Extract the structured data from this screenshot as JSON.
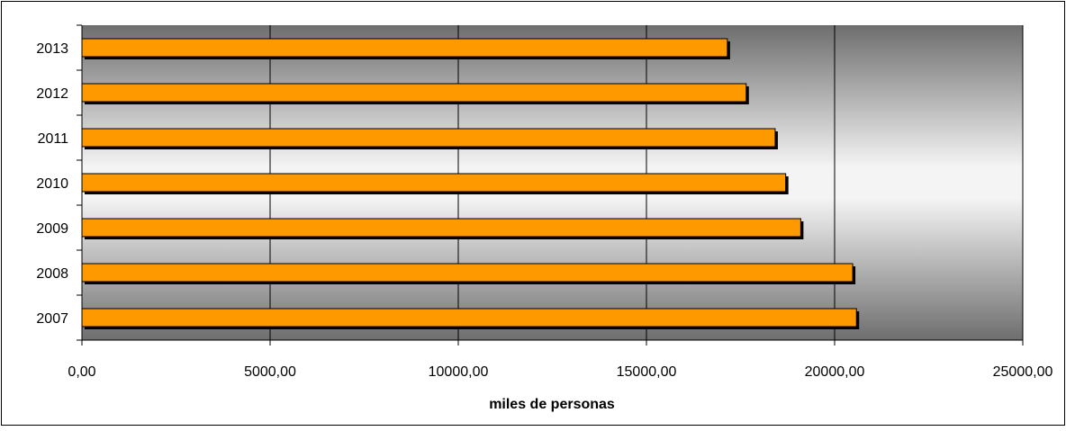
{
  "chart_data": {
    "type": "bar",
    "orientation": "horizontal",
    "categories": [
      "2013",
      "2012",
      "2011",
      "2010",
      "2009",
      "2008",
      "2007"
    ],
    "values": [
      17150,
      17650,
      18420,
      18700,
      19100,
      20480,
      20580
    ],
    "xlabel": "miles de personas",
    "ylabel": "",
    "xlim": [
      0,
      25000
    ],
    "x_ticks": [
      0,
      5000,
      10000,
      15000,
      20000,
      25000
    ],
    "x_tick_labels": [
      "0,00",
      "5000,00",
      "10000,00",
      "15000,00",
      "20000,00",
      "25000,00"
    ],
    "grid": "vertical",
    "legend": "none"
  },
  "colors": {
    "bar_fill": "#FF9900",
    "bar_shadow": "#000000",
    "plot_gradient_edge": "#6E6E6E",
    "plot_gradient_center": "#F4F4F4"
  }
}
